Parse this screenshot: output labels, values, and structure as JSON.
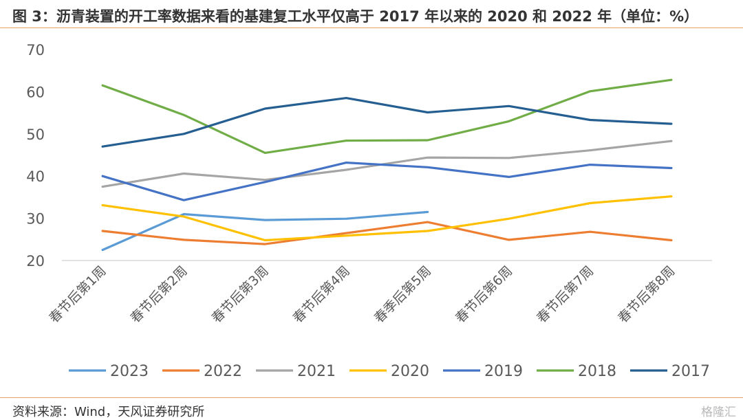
{
  "title": "图 3：沥青装置的开工率数据来看的基建复工水平仅高于 2017 年以来的 2020 和 2022 年（单位：%）",
  "source": "资料来源：Wind，天风证券研究所",
  "watermark": "格隆汇",
  "chart_data": {
    "type": "line",
    "title": "图 3：沥青装置的开工率数据来看的基建复工水平仅高于 2017 年以来的 2020 和 2022 年（单位：%）",
    "xlabel": "",
    "ylabel": "",
    "ylim": [
      20,
      70
    ],
    "yticks": [
      20,
      30,
      40,
      50,
      60,
      70
    ],
    "grid": false,
    "legend": "bottom",
    "categories": [
      "春节后第1周",
      "春节后第2周",
      "春节后第3周",
      "春节后第4周",
      "春季后第5周",
      "春节后第6周",
      "春节后第7周",
      "春节后第8周"
    ],
    "series": [
      {
        "name": "2023",
        "color": "#5b9bd5",
        "values": [
          22.5,
          31.0,
          29.6,
          29.9,
          31.5,
          null,
          null,
          null
        ]
      },
      {
        "name": "2022",
        "color": "#ed7d31",
        "values": [
          27.0,
          24.9,
          23.9,
          26.5,
          29.1,
          24.9,
          26.8,
          24.8
        ]
      },
      {
        "name": "2021",
        "color": "#a5a5a5",
        "values": [
          37.5,
          40.6,
          39.1,
          41.5,
          44.4,
          44.3,
          46.1,
          48.3
        ]
      },
      {
        "name": "2020",
        "color": "#ffc000",
        "values": [
          33.1,
          30.4,
          24.8,
          25.9,
          27.0,
          29.9,
          33.6,
          35.2
        ]
      },
      {
        "name": "2019",
        "color": "#4472c4",
        "values": [
          40.0,
          34.3,
          38.6,
          43.2,
          42.1,
          39.8,
          42.7,
          41.9
        ]
      },
      {
        "name": "2018",
        "color": "#70ad47",
        "values": [
          61.5,
          54.5,
          45.5,
          48.4,
          48.5,
          53.0,
          60.1,
          62.8
        ]
      },
      {
        "name": "2017",
        "color": "#255e91",
        "values": [
          47.0,
          50.0,
          56.0,
          58.5,
          55.1,
          56.6,
          53.3,
          52.4
        ]
      }
    ]
  }
}
